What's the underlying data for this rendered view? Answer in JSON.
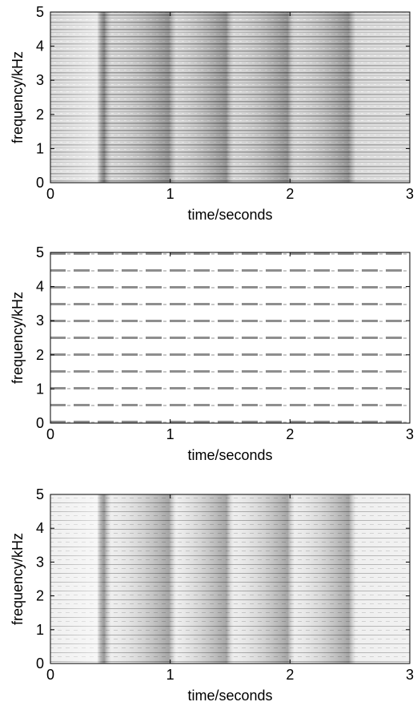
{
  "chart_data": [
    {
      "type": "spectrogram",
      "xlabel": "time/seconds",
      "ylabel": "frequency/kHz",
      "xlim": [
        0,
        3
      ],
      "ylim": [
        0,
        5
      ],
      "xticks": [
        0,
        1,
        2,
        3
      ],
      "yticks": [
        0,
        1,
        2,
        3,
        4,
        5
      ]
    },
    {
      "type": "spectrogram",
      "xlabel": "time/seconds",
      "ylabel": "frequency/kHz",
      "xlim": [
        0,
        3
      ],
      "ylim": [
        0,
        5
      ],
      "xticks": [
        0,
        1,
        2,
        3
      ],
      "yticks": [
        0,
        1,
        2,
        3,
        4,
        5
      ]
    },
    {
      "type": "spectrogram",
      "xlabel": "time/seconds",
      "ylabel": "frequency/kHz",
      "xlim": [
        0,
        3
      ],
      "ylim": [
        0,
        5
      ],
      "xticks": [
        0,
        1,
        2,
        3
      ],
      "yticks": [
        0,
        1,
        2,
        3,
        4,
        5
      ]
    }
  ]
}
